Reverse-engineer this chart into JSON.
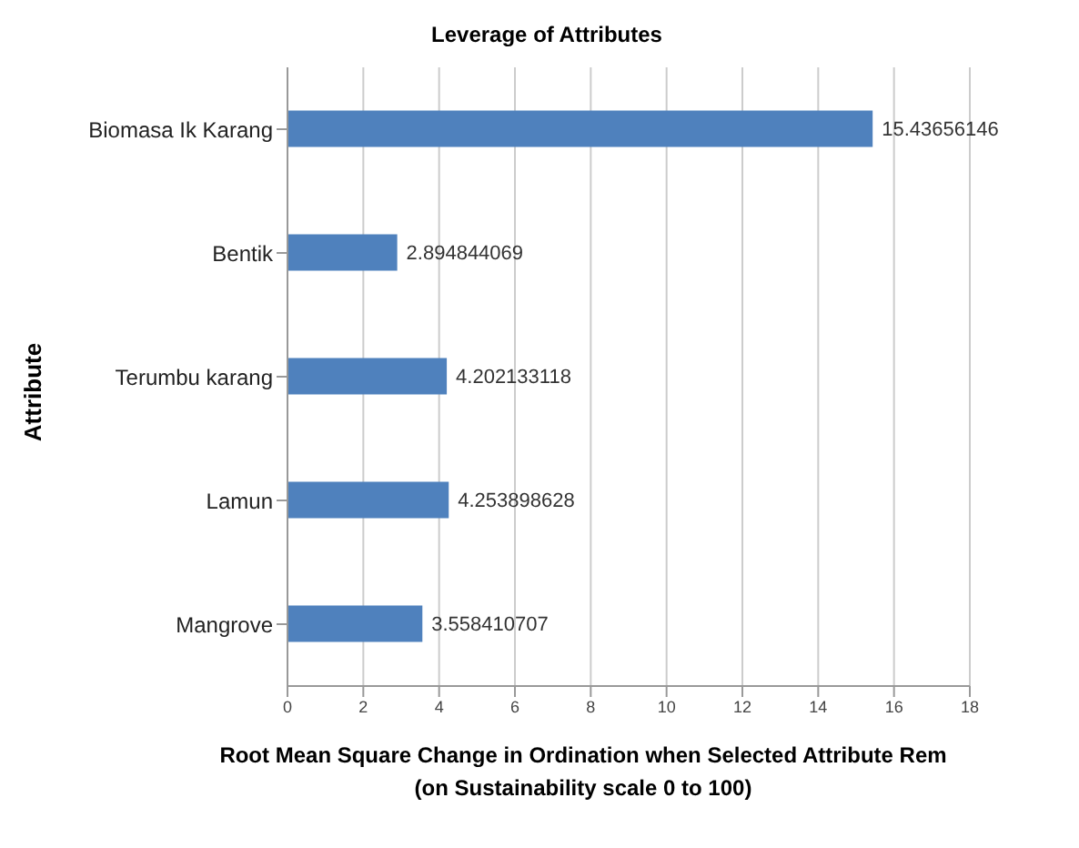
{
  "chart_data": {
    "type": "bar",
    "orientation": "horizontal",
    "title": "Leverage of Attributes",
    "ylabel": "Attribute",
    "xlabel": "Root Mean Square Change in Ordination when Selected Attribute Rem\n(on Sustainability scale 0 to 100)",
    "categories": [
      "Biomasa Ik Karang",
      "Bentik",
      "Terumbu karang",
      "Lamun",
      "Mangrove"
    ],
    "values": [
      15.43656146,
      2.894844069,
      4.202133118,
      4.253898628,
      3.558410707
    ],
    "color": "#4f81bd",
    "data_labels": true,
    "grid": "x",
    "xlim": [
      0,
      18
    ],
    "xticks": [
      0,
      2,
      4,
      6,
      8,
      10,
      12,
      14,
      16,
      18
    ]
  }
}
